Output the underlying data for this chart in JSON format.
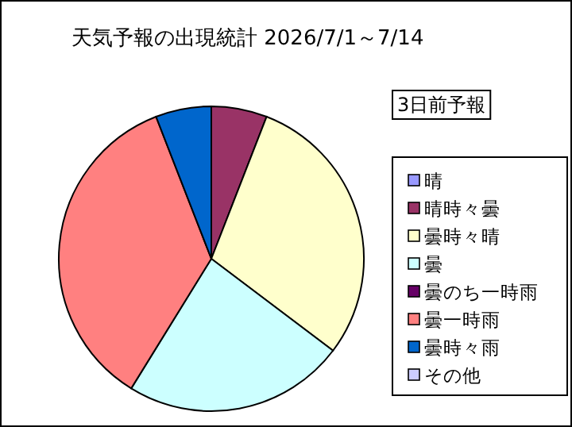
{
  "chart_data": {
    "type": "pie",
    "title": "天気予報の出現統計 2026/7/1～7/14",
    "annotations": [
      "3日前予報"
    ],
    "categories": [
      "晴",
      "晴時々曇",
      "曇時々晴",
      "曇",
      "曇のち一時雨",
      "曇一時雨",
      "曇時々雨",
      "その他"
    ],
    "values": [
      0,
      5.9,
      29.4,
      23.5,
      0,
      35.3,
      5.9,
      0
    ],
    "colors": [
      "#9999ff",
      "#993366",
      "#ffffcc",
      "#ccffff",
      "#660066",
      "#ff8080",
      "#0066cc",
      "#ccccff"
    ],
    "legend": "right"
  }
}
